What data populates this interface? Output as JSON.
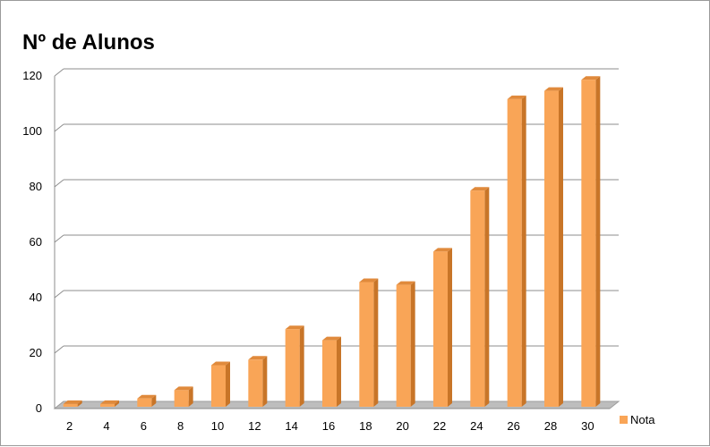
{
  "chart_data": {
    "type": "bar",
    "title": "Nº de Alunos",
    "categories": [
      "2",
      "4",
      "6",
      "8",
      "10",
      "12",
      "14",
      "16",
      "18",
      "20",
      "22",
      "24",
      "26",
      "28",
      "30"
    ],
    "series": [
      {
        "name": "Nota",
        "values": [
          1,
          1,
          3,
          6,
          15,
          17,
          28,
          24,
          45,
          44,
          56,
          78,
          111,
          114,
          118
        ]
      }
    ],
    "ylim": [
      0,
      120
    ],
    "yticks": [
      0,
      20,
      40,
      60,
      80,
      100,
      120
    ],
    "grid": true,
    "legend": "right",
    "colors": {
      "bar_front": "#f9a557",
      "bar_side": "#c87528",
      "bar_top": "#e08a3c",
      "grid": "#8c8c8c",
      "floor": "#bdbdbd"
    }
  }
}
